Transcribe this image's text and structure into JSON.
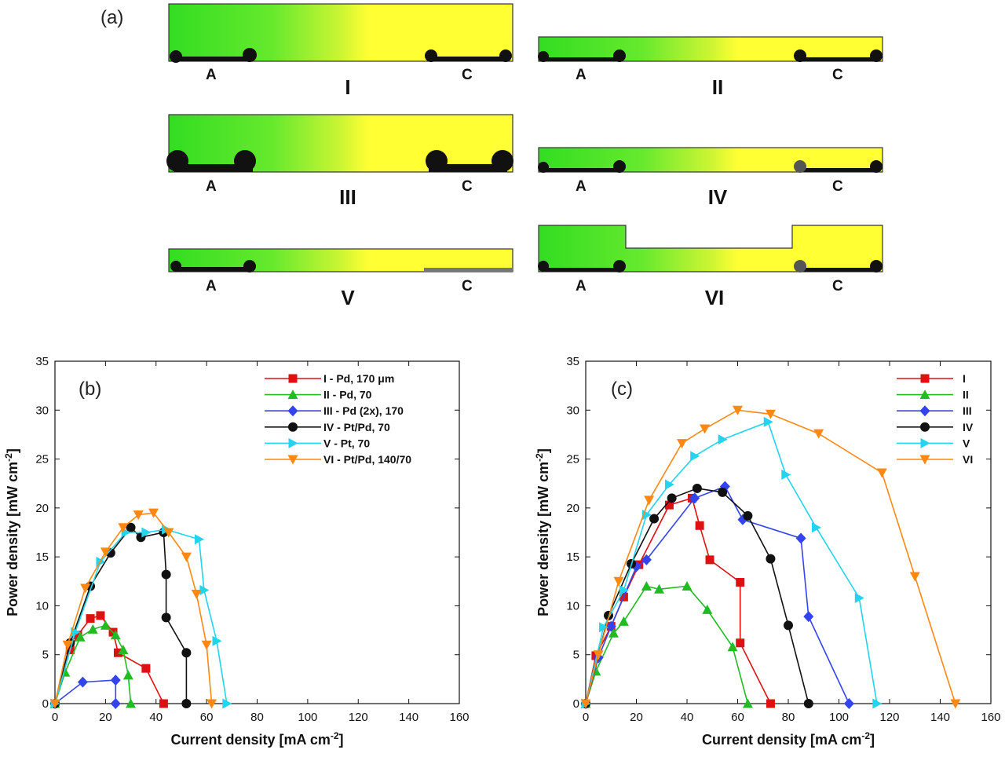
{
  "panel_a": {
    "label": "(a)",
    "channels": [
      {
        "id": "I",
        "anode": "A",
        "cathode": "C"
      },
      {
        "id": "II",
        "anode": "A",
        "cathode": "C"
      },
      {
        "id": "III",
        "anode": "A",
        "cathode": "C"
      },
      {
        "id": "IV",
        "anode": "A",
        "cathode": "C"
      },
      {
        "id": "V",
        "anode": "A",
        "cathode": "C"
      },
      {
        "id": "VI",
        "anode": "A",
        "cathode": "C"
      }
    ],
    "colors": {
      "green": "#33dd22",
      "yellow": "#ffff33"
    }
  },
  "chart_data": [
    {
      "panel": "(b)",
      "type": "line",
      "xlabel": "Current density [mA cm⁻²]",
      "ylabel": "Power density [mW cm⁻²]",
      "xlim": [
        0,
        160
      ],
      "ylim": [
        0,
        35
      ],
      "xticks": [
        0,
        20,
        40,
        60,
        80,
        100,
        120,
        140,
        160
      ],
      "yticks": [
        0,
        5,
        10,
        15,
        20,
        25,
        30,
        35
      ],
      "series": [
        {
          "name": "I   - Pd, 170 μm",
          "color": "#dd1111",
          "marker": "square",
          "x": [
            0,
            6,
            9,
            14,
            18,
            23,
            25,
            36,
            43
          ],
          "y": [
            0,
            5.5,
            7,
            8.7,
            9,
            7.3,
            5.2,
            3.6,
            0
          ]
        },
        {
          "name": "II  - Pd, 70",
          "color": "#22bb22",
          "marker": "triangle-up",
          "x": [
            0,
            4,
            10,
            15,
            20,
            24,
            27,
            29,
            30
          ],
          "y": [
            0,
            3.2,
            6.8,
            7.6,
            8,
            7,
            5.5,
            2.9,
            0
          ]
        },
        {
          "name": "III - Pd (2x), 170",
          "color": "#3344ee",
          "marker": "diamond",
          "x": [
            0,
            11,
            24,
            24
          ],
          "y": [
            0,
            2.2,
            2.4,
            0
          ]
        },
        {
          "name": "IV  - Pt/Pd, 70",
          "color": "#111111",
          "marker": "circle",
          "x": [
            0,
            6,
            14,
            22,
            30,
            34,
            43,
            44,
            44,
            52,
            52
          ],
          "y": [
            0,
            6.2,
            12,
            15.4,
            18,
            17,
            17.5,
            13.2,
            8.8,
            5.2,
            0
          ]
        },
        {
          "name": "V   - Pt, 70",
          "color": "#22d4ee",
          "marker": "triangle-right",
          "x": [
            0,
            8,
            18,
            28,
            36,
            44,
            57,
            59,
            64,
            68
          ],
          "y": [
            0,
            7.3,
            14.5,
            17.5,
            17.5,
            17.8,
            16.8,
            11.6,
            6.4,
            0
          ]
        },
        {
          "name": "VI  - Pt/Pd, 140/70",
          "color": "#ff8811",
          "marker": "triangle-down",
          "x": [
            0,
            5,
            12,
            20,
            27,
            33,
            39,
            45,
            52,
            56,
            60,
            62
          ],
          "y": [
            0,
            6,
            11.8,
            15.5,
            18,
            19.3,
            19.5,
            17.5,
            15,
            11.2,
            6,
            0
          ]
        }
      ]
    },
    {
      "panel": "(c)",
      "type": "line",
      "xlabel": "Current density [mA cm⁻²]",
      "ylabel": "Power density [mW cm⁻²]",
      "xlim": [
        0,
        160
      ],
      "ylim": [
        0,
        35
      ],
      "xticks": [
        0,
        20,
        40,
        60,
        80,
        100,
        120,
        140,
        160
      ],
      "yticks": [
        0,
        5,
        10,
        15,
        20,
        25,
        30,
        35
      ],
      "series": [
        {
          "name": "I",
          "color": "#dd1111",
          "marker": "square",
          "x": [
            0,
            4,
            10,
            15,
            21,
            33,
            42,
            45,
            49,
            61,
            61,
            73
          ],
          "y": [
            0,
            4.9,
            7.9,
            10.9,
            14.2,
            20.3,
            21,
            18.2,
            14.7,
            12.4,
            6.2,
            0
          ]
        },
        {
          "name": "II",
          "color": "#22bb22",
          "marker": "triangle-up",
          "x": [
            0,
            4,
            11,
            15,
            24,
            29,
            40,
            48,
            58,
            64
          ],
          "y": [
            0,
            3.3,
            7.2,
            8.4,
            12,
            11.7,
            12,
            9.6,
            5.8,
            0
          ]
        },
        {
          "name": "III",
          "color": "#3344ee",
          "marker": "diamond",
          "x": [
            0,
            5,
            10,
            20,
            24,
            43,
            55,
            62,
            85,
            88,
            104
          ],
          "y": [
            0,
            4.7,
            7.9,
            14,
            14.7,
            21,
            22.2,
            18.8,
            16.9,
            8.9,
            0
          ]
        },
        {
          "name": "IV",
          "color": "#111111",
          "marker": "circle",
          "x": [
            0,
            9,
            18,
            27,
            34,
            44,
            54,
            64,
            73,
            80,
            88
          ],
          "y": [
            0,
            9,
            14.3,
            18.9,
            21,
            22,
            21.6,
            19.2,
            14.8,
            8,
            0
          ]
        },
        {
          "name": "V",
          "color": "#22d4ee",
          "marker": "triangle-right",
          "x": [
            0,
            7,
            15,
            24,
            33,
            43,
            54,
            72,
            79,
            91,
            108,
            115
          ],
          "y": [
            0,
            7.8,
            11.6,
            19.3,
            22.4,
            25.3,
            27,
            28.8,
            23.4,
            18,
            10.8,
            0
          ]
        },
        {
          "name": "VI",
          "color": "#ff8811",
          "marker": "triangle-down",
          "x": [
            0,
            5,
            13,
            25,
            38,
            47,
            60,
            73,
            92,
            117,
            130,
            146
          ],
          "y": [
            0,
            5,
            12.5,
            20.8,
            26.6,
            28.1,
            30,
            29.6,
            27.6,
            23.6,
            13,
            0
          ]
        }
      ]
    }
  ]
}
